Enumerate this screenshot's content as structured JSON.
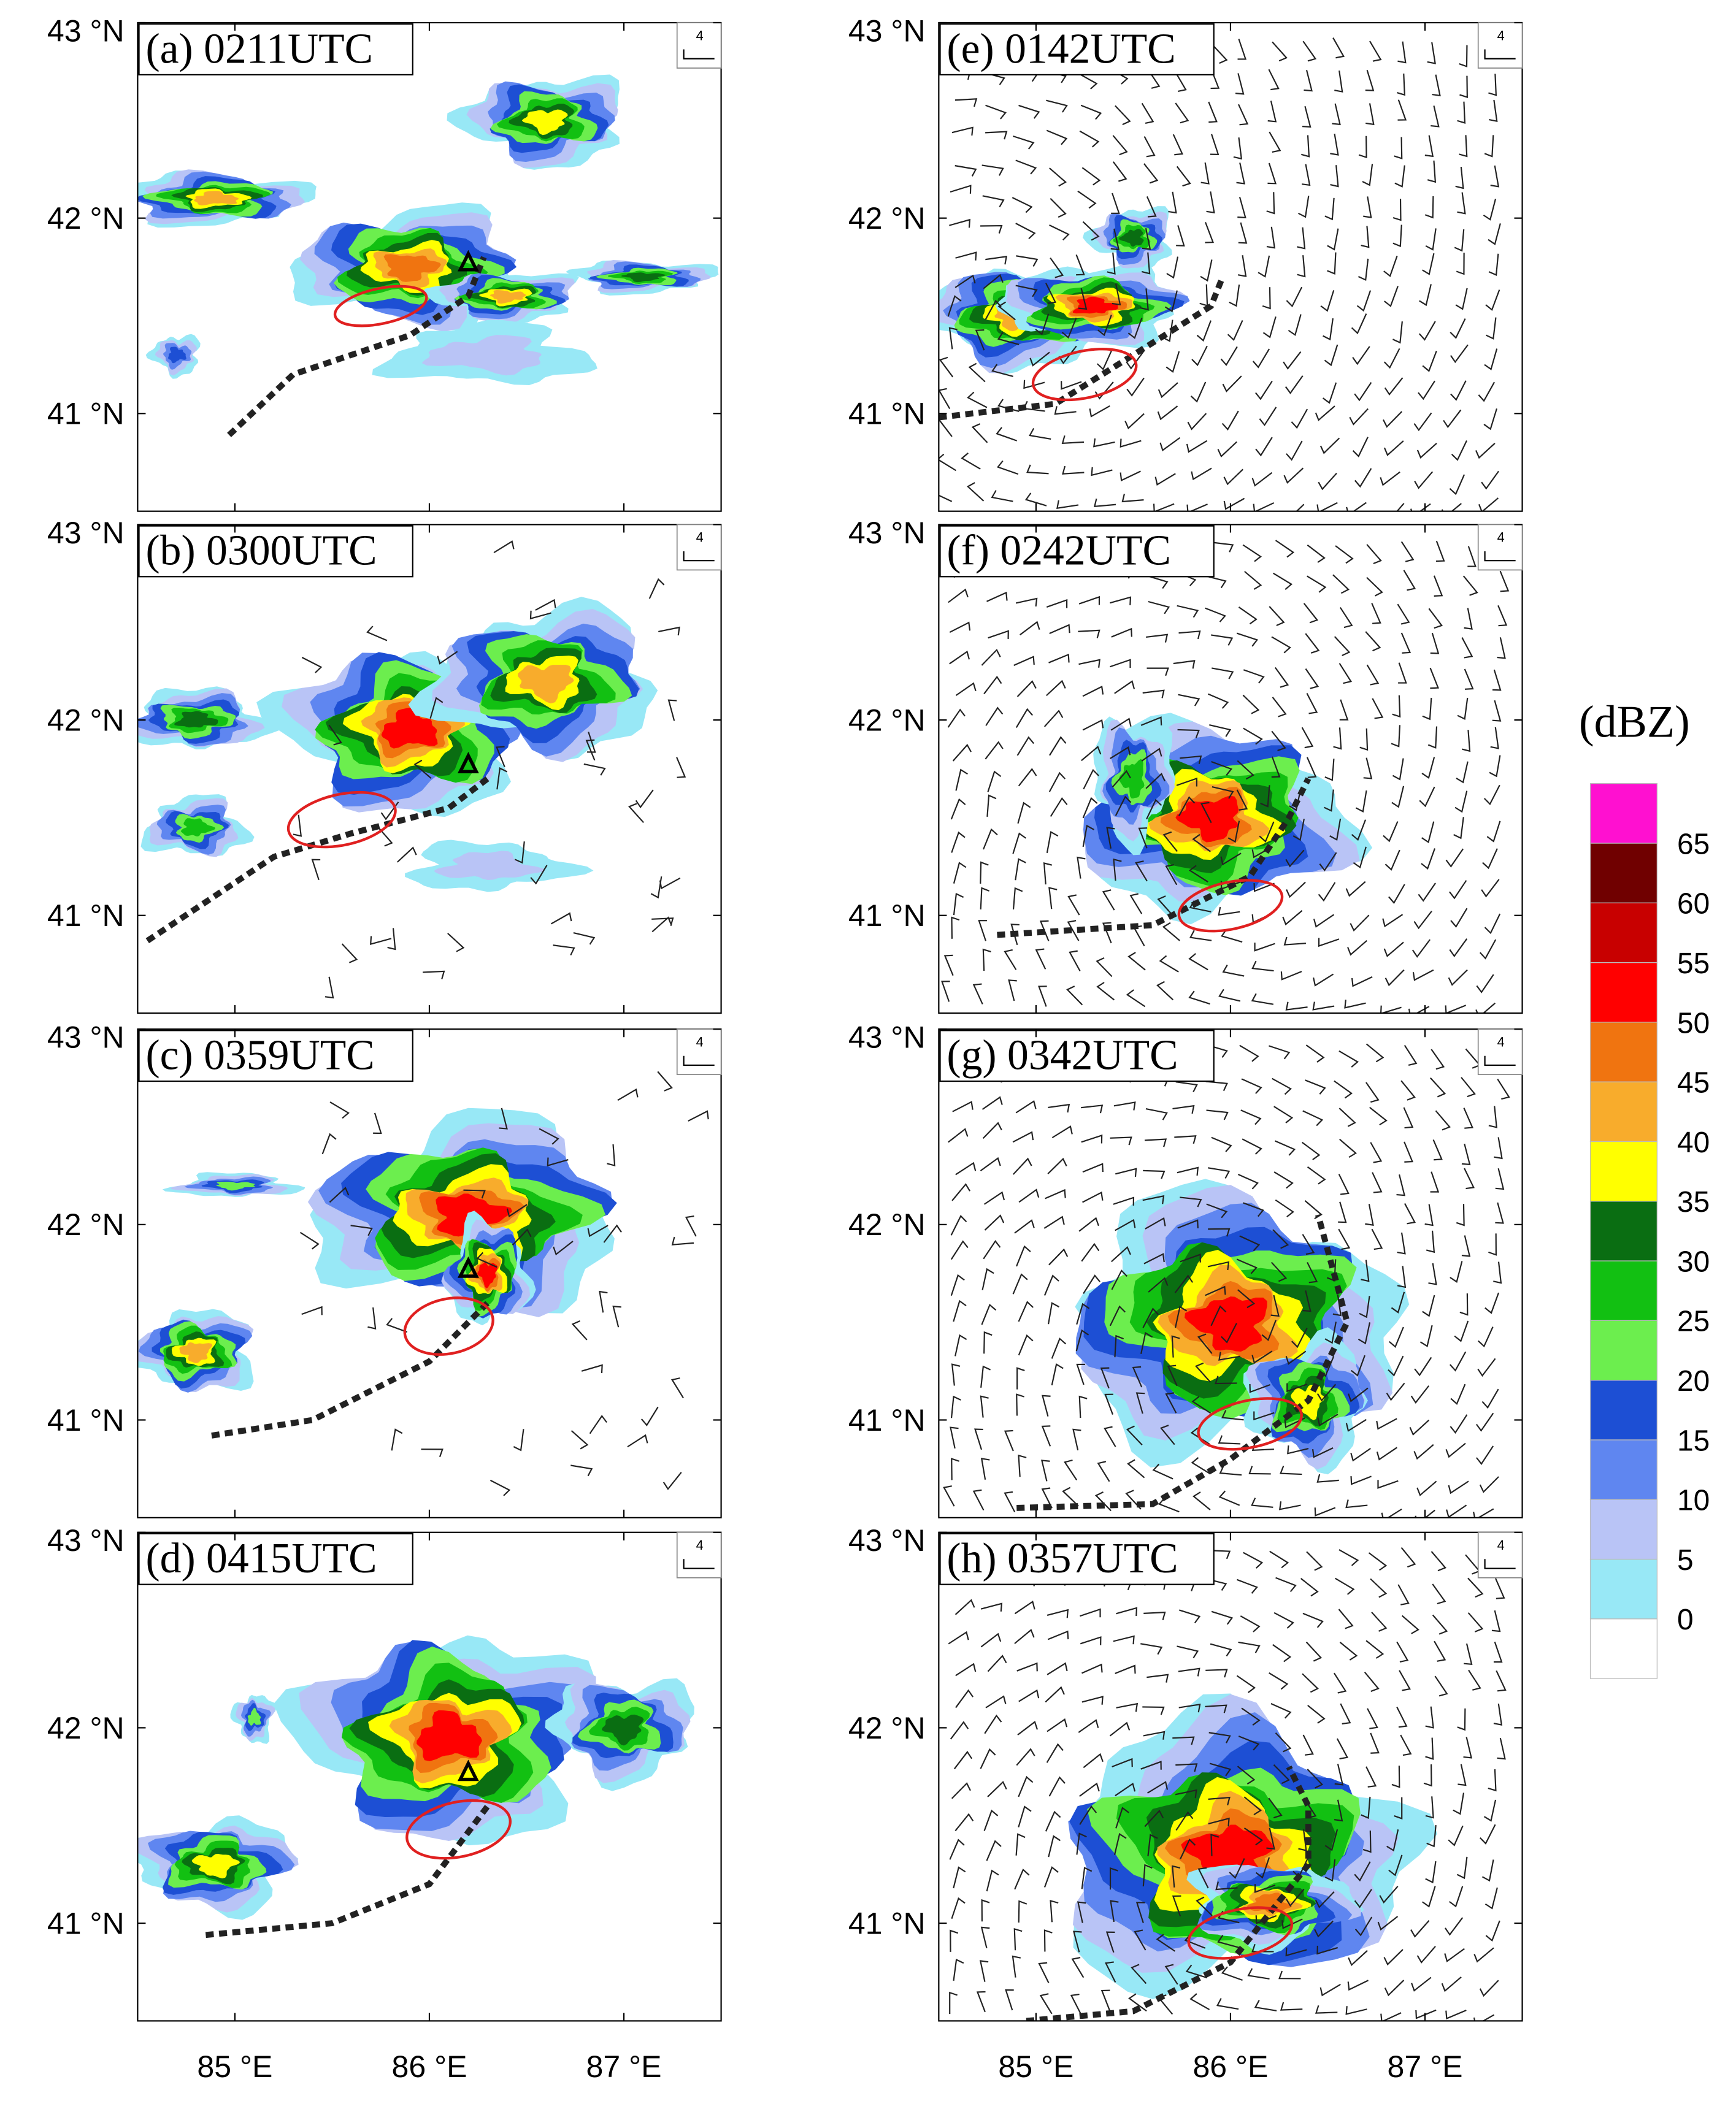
{
  "maps": {
    "xlim": [
      84.5,
      87.5
    ],
    "ylim": [
      40.5,
      43
    ],
    "xticks": [
      {
        "value": 85,
        "label": "85 °E"
      },
      {
        "value": 86,
        "label": "86 °E"
      },
      {
        "value": 87,
        "label": "87 °E"
      }
    ],
    "yticks": [
      {
        "value": 41,
        "label": "41 °N"
      },
      {
        "value": 42,
        "label": "42 °N"
      },
      {
        "value": 43,
        "label": "43 °N"
      }
    ]
  },
  "panels": [
    {
      "label": "(a) 0211UTC"
    },
    {
      "label": "(b) 0300UTC"
    },
    {
      "label": "(c) 0359UTC"
    },
    {
      "label": "(d) 0415UTC"
    },
    {
      "label": "(e) 0142UTC"
    },
    {
      "label": "(f) 0242UTC"
    },
    {
      "label": "(g) 0342UTC"
    },
    {
      "label": "(h) 0357UTC"
    }
  ],
  "reference_vector": "4",
  "colorbar": {
    "title": "(dBZ)",
    "levels": [
      0,
      5,
      10,
      15,
      20,
      25,
      30,
      35,
      40,
      45,
      50,
      55,
      60,
      65
    ],
    "colors": [
      "#ffffff",
      "#98e8f6",
      "#b9c4f6",
      "#5f86f0",
      "#1d4fd4",
      "#6cee4e",
      "#12c012",
      "#0a6e12",
      "#ffff00",
      "#f8ac2c",
      "#f07410",
      "#ff0000",
      "#c80000",
      "#700000",
      "#ff10d0"
    ]
  }
}
